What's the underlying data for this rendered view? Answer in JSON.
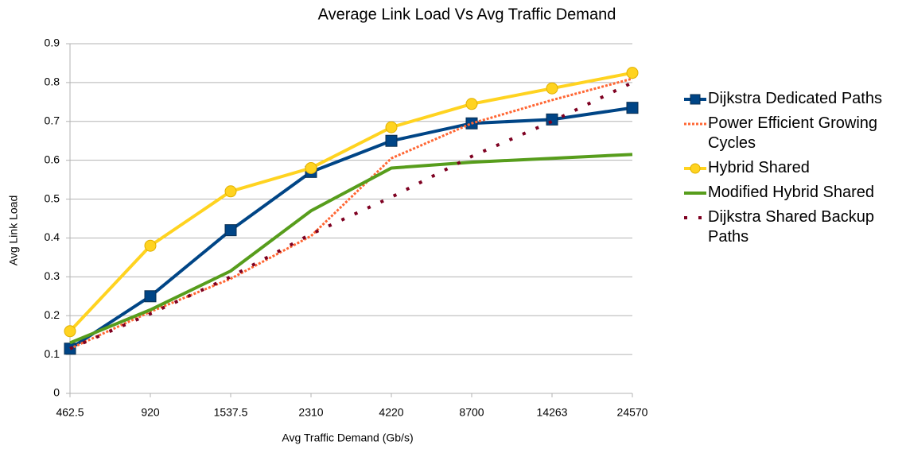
{
  "chart_data": {
    "type": "line",
    "title": "Average Link Load Vs Avg Traffic Demand",
    "x_label": "Avg Traffic Demand (Gb/s)",
    "y_label": "Avg Link Load",
    "categories": [
      "462.5",
      "920",
      "1537.5",
      "2310",
      "4220",
      "8700",
      "14263",
      "24570"
    ],
    "ylim": [
      0,
      0.9
    ],
    "yticks": [
      0,
      0.1,
      0.2,
      0.3,
      0.4,
      0.5,
      0.6,
      0.7,
      0.8,
      0.9
    ],
    "grid": true,
    "legend": "right",
    "series": [
      {
        "name": "Dijkstra Dedicated Paths",
        "color": "#004586",
        "marker": "square",
        "dash": "solid",
        "values": [
          0.115,
          0.25,
          0.42,
          0.57,
          0.65,
          0.695,
          0.705,
          0.735
        ]
      },
      {
        "name": "Power Efficient Growing Cycles",
        "color": "#ff6633",
        "marker": "none",
        "dash": "dotted",
        "values": [
          0.115,
          0.21,
          0.295,
          0.405,
          0.605,
          0.695,
          0.755,
          0.81
        ]
      },
      {
        "name": "Hybrid Shared",
        "color": "#ffd320",
        "marker": "circle",
        "dash": "solid",
        "values": [
          0.16,
          0.38,
          0.52,
          0.58,
          0.685,
          0.745,
          0.785,
          0.825
        ]
      },
      {
        "name": "Modified Hybrid Shared",
        "color": "#579d1c",
        "marker": "none",
        "dash": "solid",
        "values": [
          0.13,
          0.215,
          0.315,
          0.47,
          0.58,
          0.595,
          0.605,
          0.615
        ]
      },
      {
        "name": "Dijkstra Shared Backup Paths",
        "color": "#7e0021",
        "marker": "none",
        "dash": "sparse",
        "values": [
          0.115,
          0.205,
          0.3,
          0.41,
          0.505,
          0.61,
          0.7,
          0.8
        ]
      }
    ]
  }
}
